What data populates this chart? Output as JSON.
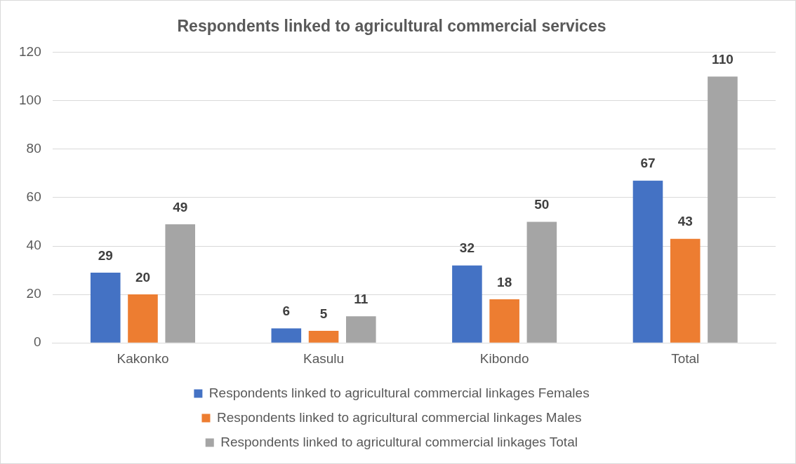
{
  "chart_data": {
    "type": "bar",
    "title": "Respondents linked to agricultural commercial services",
    "categories": [
      "Kakonko",
      "Kasulu",
      "Kibondo",
      "Total"
    ],
    "series": [
      {
        "name": "Respondents linked to agricultural commercial linkages Females",
        "color": "#4472c4",
        "values": [
          29,
          6,
          32,
          67
        ]
      },
      {
        "name": "Respondents linked to agricultural commercial linkages Males",
        "color": "#ed7d31",
        "values": [
          20,
          5,
          18,
          43
        ]
      },
      {
        "name": "Respondents linked to agricultural commercial linkages Total",
        "color": "#a5a5a5",
        "values": [
          49,
          11,
          50,
          110
        ]
      }
    ],
    "ylim": [
      0,
      120
    ],
    "yticks": [
      0,
      20,
      40,
      60,
      80,
      100,
      120
    ],
    "grid": "y",
    "legend": "bottom",
    "data_labels": true
  }
}
